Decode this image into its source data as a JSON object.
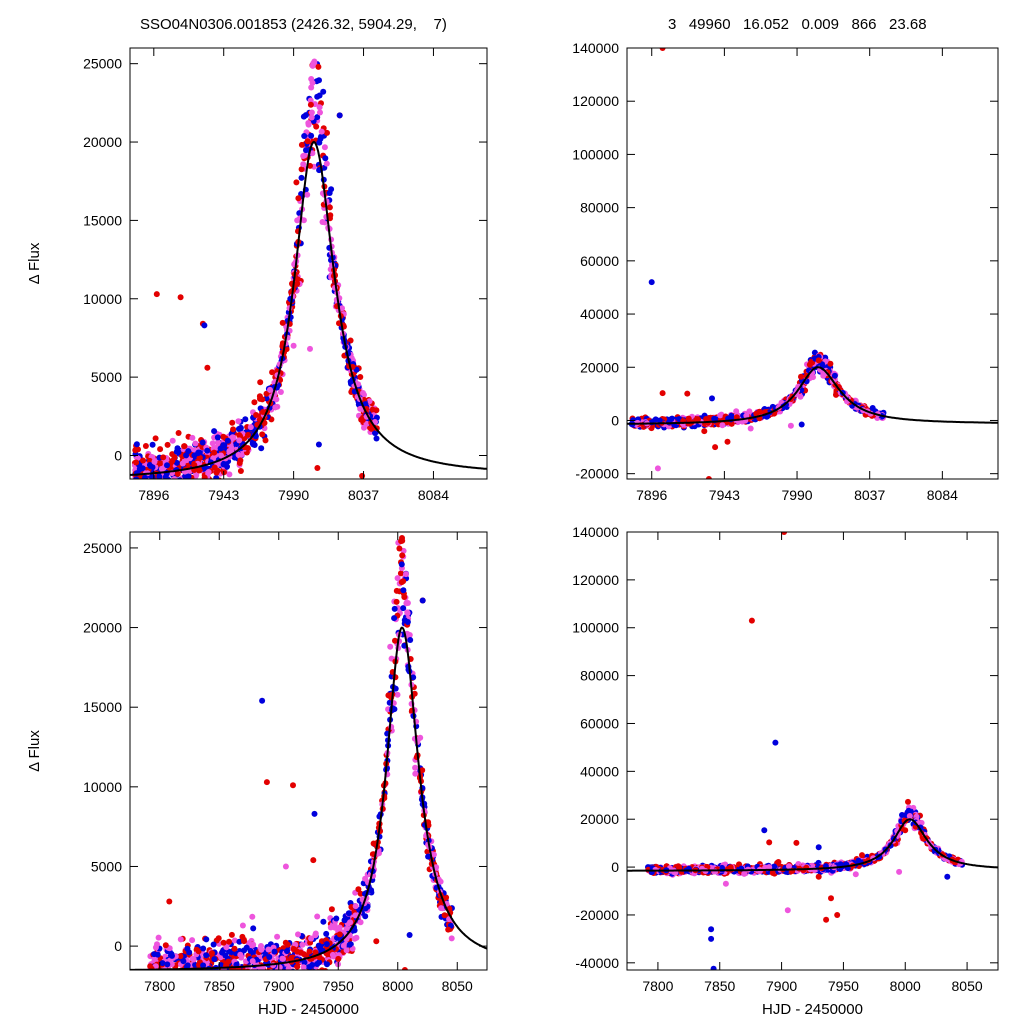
{
  "header": {
    "left": "SSO04N0306.001853 (2426.32, 5904.29,    7)",
    "right": "3   49960   16.052   0.009   866   23.68"
  },
  "colors": {
    "red": "#e30000",
    "blue": "#0000dd",
    "pink": "#ee55dd",
    "model": "#000000"
  },
  "model": {
    "t0": 8003.6,
    "peak": 20000,
    "baseline_left": -1600,
    "baseline_right": -1300,
    "hwhm_rise": 16,
    "hwhm_fall": 17
  },
  "chart_data": [
    {
      "type": "scatter",
      "panel": "top-left",
      "ylabel": "Δ Flux",
      "xlabel": "",
      "xlim": [
        7880,
        8120
      ],
      "ylim": [
        -1500,
        26000
      ],
      "xticks": [
        7896,
        7943,
        7990,
        8037,
        8084
      ],
      "yticks": [
        0,
        5000,
        10000,
        15000,
        20000,
        25000
      ],
      "series": [
        {
          "color": "red",
          "points": [
            [
              7898,
              10300
            ],
            [
              7914,
              10100
            ],
            [
              7932,
              5600
            ],
            [
              7929,
              8400
            ],
            [
              8006,
              -800
            ],
            [
              8021,
              21700
            ],
            [
              8036,
              -1300
            ]
          ]
        },
        {
          "color": "blue",
          "points": [
            [
              7930,
              8300
            ],
            [
              8007,
              700
            ],
            [
              8021,
              21700
            ]
          ]
        },
        {
          "color": "pink",
          "points": [
            [
              8001,
              6800
            ],
            [
              7977,
              4000
            ],
            [
              7990,
              7000
            ]
          ]
        }
      ]
    },
    {
      "type": "scatter",
      "panel": "top-right",
      "ylabel": "",
      "xlabel": "",
      "xlim": [
        7880,
        8120
      ],
      "ylim": [
        -22000,
        140000
      ],
      "xticks": [
        7896,
        7943,
        7990,
        8037,
        8084
      ],
      "yticks": [
        -20000,
        0,
        20000,
        40000,
        60000,
        80000,
        100000,
        120000,
        140000
      ],
      "series": [
        {
          "color": "red",
          "points": [
            [
              7903,
              140000
            ],
            [
              7903,
              10300
            ],
            [
              7919,
              10100
            ],
            [
              7933,
              -22000
            ],
            [
              7937,
              -10000
            ],
            [
              7945,
              -8000
            ],
            [
              7930,
              -4000
            ]
          ]
        },
        {
          "color": "blue",
          "points": [
            [
              7896,
              52000
            ],
            [
              7935,
              8300
            ],
            [
              7993,
              -1500
            ]
          ]
        },
        {
          "color": "pink",
          "points": [
            [
              7900,
              -18000
            ],
            [
              7960,
              -3000
            ],
            [
              7986,
              -2000
            ]
          ]
        }
      ]
    },
    {
      "type": "scatter",
      "panel": "bottom-left",
      "ylabel": "Δ Flux",
      "xlabel": "HJD - 2450000",
      "xlim": [
        7775,
        8075
      ],
      "ylim": [
        -1500,
        26000
      ],
      "xticks": [
        7800,
        7850,
        7900,
        7950,
        8000,
        8050
      ],
      "yticks": [
        0,
        5000,
        10000,
        15000,
        20000,
        25000
      ],
      "series": [
        {
          "color": "red",
          "points": [
            [
              7808,
              2800
            ],
            [
              7890,
              10300
            ],
            [
              7912,
              10100
            ],
            [
              7929,
              5400
            ],
            [
              7950,
              -800
            ],
            [
              8006,
              -1500
            ],
            [
              8021,
              21700
            ],
            [
              7982,
              300
            ],
            [
              7962,
              1500
            ]
          ]
        },
        {
          "color": "blue",
          "points": [
            [
              7886,
              15400
            ],
            [
              7930,
              8300
            ],
            [
              8010,
              700
            ],
            [
              8021,
              21700
            ]
          ]
        },
        {
          "color": "pink",
          "points": [
            [
              7906,
              5000
            ],
            [
              7975,
              4000
            ],
            [
              7960,
              1500
            ]
          ]
        }
      ]
    },
    {
      "type": "scatter",
      "panel": "bottom-right",
      "ylabel": "",
      "xlabel": "HJD - 2450000",
      "xlim": [
        7775,
        8075
      ],
      "ylim": [
        -43000,
        140000
      ],
      "xticks": [
        7800,
        7850,
        7900,
        7950,
        8000,
        8050
      ],
      "yticks": [
        -40000,
        -20000,
        0,
        20000,
        40000,
        60000,
        80000,
        100000,
        120000,
        140000
      ],
      "series": [
        {
          "color": "red",
          "points": [
            [
              7902,
              140000
            ],
            [
              7876,
              103000
            ],
            [
              7890,
              10300
            ],
            [
              7912,
              10100
            ],
            [
              7936,
              -22000
            ],
            [
              7940,
              -13000
            ],
            [
              7945,
              -20000
            ],
            [
              7930,
              -4000
            ],
            [
              7965,
              5000
            ]
          ]
        },
        {
          "color": "blue",
          "points": [
            [
              7895,
              52000
            ],
            [
              7886,
              15400
            ],
            [
              7843,
              -26000
            ],
            [
              7843,
              -30000
            ],
            [
              7845,
              -42500
            ],
            [
              7930,
              8300
            ],
            [
              8034,
              -4000
            ]
          ]
        },
        {
          "color": "pink",
          "points": [
            [
              7905,
              -18000
            ],
            [
              7855,
              -7000
            ],
            [
              7960,
              -3000
            ],
            [
              7995,
              -2000
            ]
          ]
        }
      ]
    }
  ]
}
